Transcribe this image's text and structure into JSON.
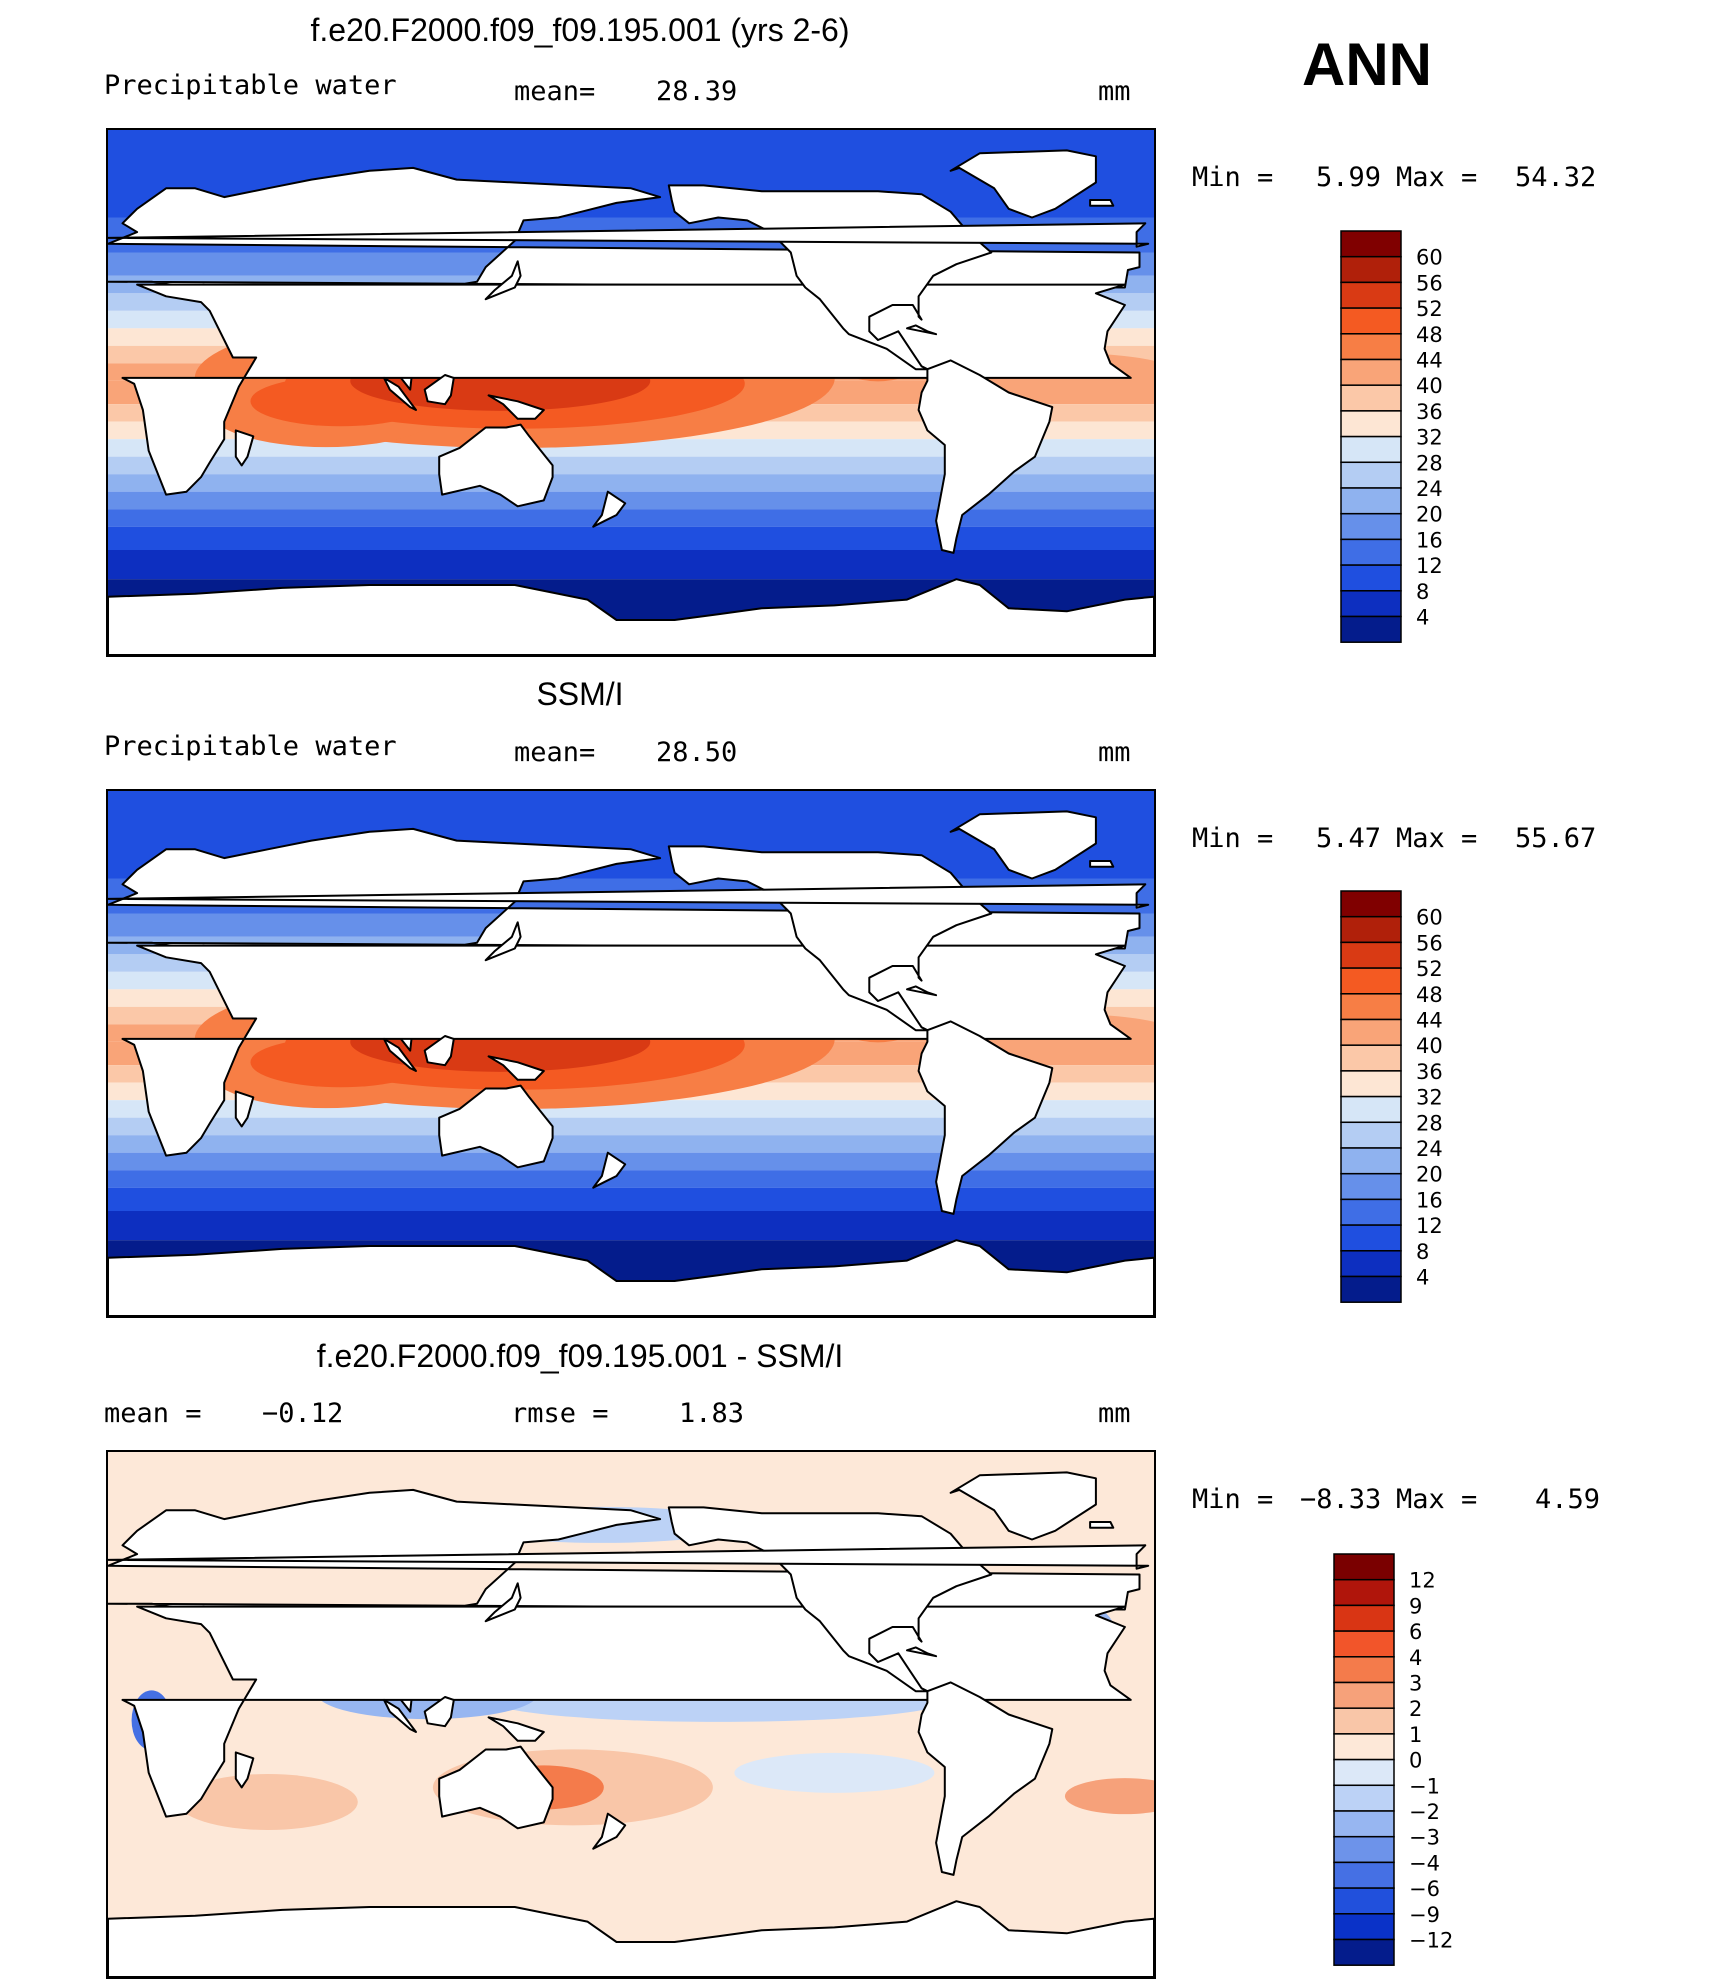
{
  "season": "ANN",
  "units": "mm",
  "panels": [
    {
      "id": "model",
      "title": "f.e20.F2000.f09_f09.195.001 (yrs 2-6)",
      "left_text": "Precipitable water",
      "mid_label": "mean=",
      "mid_value": "28.39",
      "units": "mm",
      "min_label": "Min =",
      "min_value": "5.99",
      "max_label": "Max =",
      "max_value": "54.32",
      "colorbar": [
        "60",
        "56",
        "52",
        "48",
        "44",
        "40",
        "36",
        "32",
        "28",
        "24",
        "20",
        "16",
        "12",
        "8",
        "4"
      ]
    },
    {
      "id": "obs",
      "title": "SSM/I",
      "left_text": "Precipitable water",
      "mid_label": "mean=",
      "mid_value": "28.50",
      "units": "mm",
      "min_label": "Min =",
      "min_value": "5.47",
      "max_label": "Max =",
      "max_value": "55.67",
      "colorbar": [
        "60",
        "56",
        "52",
        "48",
        "44",
        "40",
        "36",
        "32",
        "28",
        "24",
        "20",
        "16",
        "12",
        "8",
        "4"
      ]
    },
    {
      "id": "diff",
      "title": "f.e20.F2000.f09_f09.195.001 - SSM/I",
      "left_label": "mean =",
      "left_value": "−0.12",
      "mid_label": "rmse =",
      "mid_value": "1.83",
      "units": "mm",
      "min_label": "Min =",
      "min_value": "−8.33",
      "max_label": "Max =",
      "max_value": "4.59",
      "colorbar": [
        "12",
        "9",
        "6",
        "4",
        "3",
        "2",
        "1",
        "0",
        "−1",
        "−2",
        "−3",
        "−4",
        "−6",
        "−9",
        "−12"
      ]
    }
  ],
  "colors": {
    "warm_scale": [
      "#800000",
      "#b0200a",
      "#d93a14",
      "#f45a22",
      "#f77e45",
      "#f9a478",
      "#fbc8a8",
      "#fde6d4",
      "#d6e6f7",
      "#b4cdf3",
      "#8fb2ef",
      "#6690ea",
      "#3f6ee6",
      "#1f4fe0",
      "#0d2fc0",
      "#041c8c"
    ],
    "diff_scale": [
      "#7a0000",
      "#b0150b",
      "#d93514",
      "#f2552a",
      "#f47b4b",
      "#f6a17a",
      "#f9c6a8",
      "#fde8d8",
      "#dce8f8",
      "#bcd2f6",
      "#97b6f1",
      "#6d93ea",
      "#4570e4",
      "#2150dc",
      "#0a32c8",
      "#041c8c"
    ],
    "land": "#ffffff",
    "coast": "#000000"
  },
  "map_data": {
    "projection": "cylindrical equidistant, central longitude 180",
    "features": [
      "Africa",
      "Eurasia",
      "Australia",
      "North America",
      "South America",
      "Antarctica",
      "Greenland",
      "Indonesia",
      "New Zealand",
      "Japan",
      "Madagascar"
    ]
  }
}
